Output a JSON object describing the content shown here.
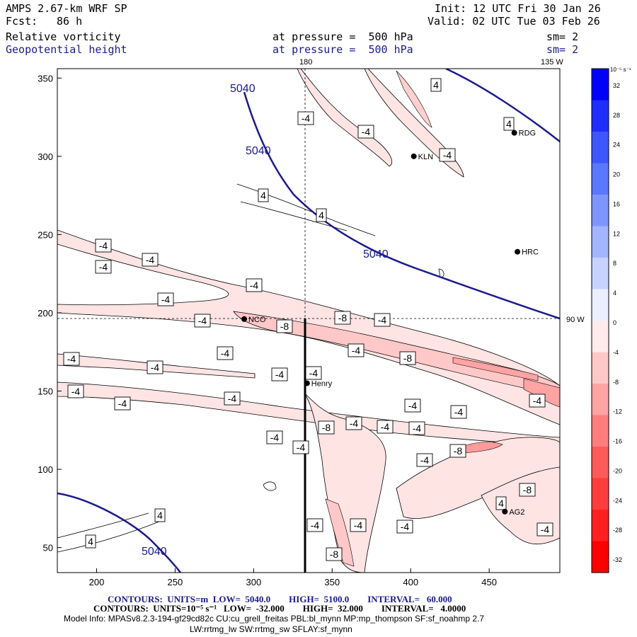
{
  "header": {
    "model": "AMPS 2.67-km WRF SP",
    "fcst_label": "Fcst:",
    "fcst_value": "86 h",
    "init": "Init: 12 UTC Fri 30 Jan 26",
    "valid": "Valid: 02 UTC Tue 03 Feb 26",
    "field1": "Relative vorticity",
    "field1_pressure": "at pressure =  500 hPa",
    "field1_sm": "sm= 2",
    "field2": "Geopotential height",
    "field2_pressure": "at pressure =  500 hPa",
    "field2_sm": "sm= 2"
  },
  "axes": {
    "x_ticks": [
      "200",
      "250",
      "300",
      "350",
      "400",
      "450"
    ],
    "y_ticks": [
      "350",
      "300",
      "250",
      "200",
      "150",
      "100",
      "50"
    ],
    "xlim": [
      175,
      495
    ],
    "ylim": [
      34,
      356
    ],
    "top_marker_left": "180",
    "top_marker_right": "135 W",
    "right_marker": "90 W"
  },
  "stations": [
    {
      "name": "KLN",
      "x": 402,
      "y": 300
    },
    {
      "name": "HRC",
      "x": 468,
      "y": 239
    },
    {
      "name": "RDG",
      "x": 466,
      "y": 315
    },
    {
      "name": "NCO",
      "x": 294,
      "y": 196
    },
    {
      "name": "Henry",
      "x": 334,
      "y": 155
    },
    {
      "name": "AG2",
      "x": 460,
      "y": 73
    }
  ],
  "contour_labels": {
    "height": [
      "5040",
      "5040",
      "5040",
      "5040"
    ],
    "vorticity": [
      "-4",
      "-4",
      "-4",
      "-4",
      "-4",
      "-4",
      "-4",
      "-4",
      "-4",
      "-4",
      "-4",
      "-4",
      "-4",
      "-4",
      "-4",
      "-4",
      "-4",
      "-4",
      "-4",
      "-4",
      "-4",
      "-4",
      "-4",
      "-4",
      "-4",
      "-4",
      "-4",
      "-4",
      "-4",
      "-4",
      "-4",
      "-4",
      "-8",
      "-8",
      "-8",
      "-8",
      "-8",
      "-8",
      "-8",
      "4",
      "4",
      "4",
      "4",
      "4",
      "4",
      "4"
    ]
  },
  "colorbar": {
    "unit": "10⁻⁵ s⁻¹",
    "ticks": [
      "32",
      "28",
      "24",
      "20",
      "16",
      "12",
      "8",
      "4",
      "0",
      "-4",
      "-8",
      "-12",
      "-16",
      "-20",
      "-24",
      "-28",
      "-32"
    ],
    "colors": [
      "#0000ff",
      "#1f2dff",
      "#3d56ff",
      "#5a77ff",
      "#7d96ff",
      "#a3b5ff",
      "#c8d2ff",
      "#ebeeff",
      "#ffebeb",
      "#ffc8c8",
      "#ffa3a3",
      "#ff7d7d",
      "#ff5a5a",
      "#ff3d3d",
      "#ff1f1f",
      "#ff0000"
    ]
  },
  "footer": {
    "line1": "CONTOURS:  UNITS=m  LOW=  5040.0        HIGH=  5100.0        INTERVAL=   60.000",
    "line2": "CONTOURS:  UNITS=10⁻⁵ s⁻¹   LOW=  -32.000        HIGH=  32.000        INTERVAL=   4.0000",
    "line3": "Model Info: MPASv8.2.3-194-gf29cd82c CU:cu_grell_freitas PBL:bl_mynn MP:mp_thompson SF:sf_noahmp 2.7",
    "line4": "LW:rrtmg_lw SW:rrtmg_sw SFLAY:sf_mynn"
  }
}
